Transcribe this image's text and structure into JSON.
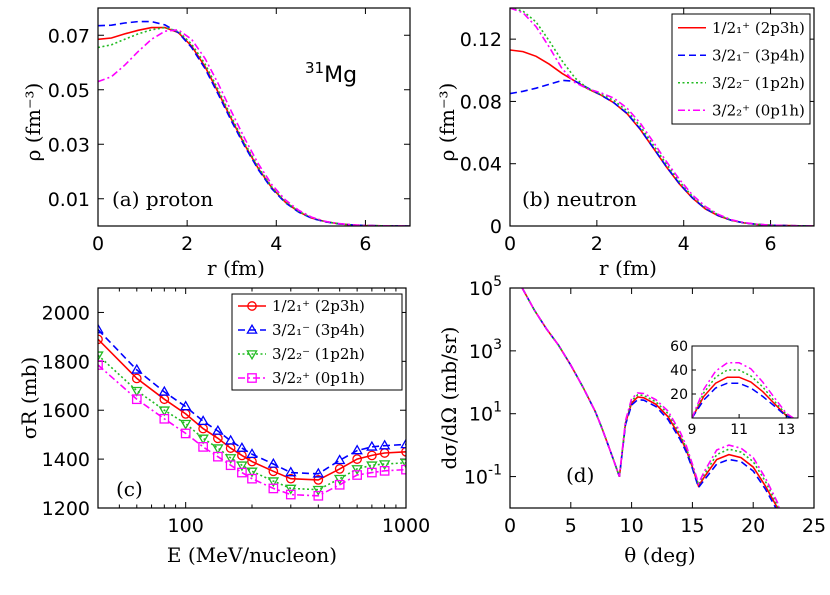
{
  "nucleus": {
    "mass": "31",
    "symbol": "Mg"
  },
  "styles": {
    "s0": {
      "color": "#ff0000",
      "dash": "",
      "marker": "circle"
    },
    "s1": {
      "color": "#0000ff",
      "dash": "7,4",
      "marker": "triangle"
    },
    "s2": {
      "color": "#22bb22",
      "dash": "2,2.5",
      "marker": "tri-down"
    },
    "s3": {
      "color": "#ff00ff",
      "dash": "7,3,2,3",
      "marker": "square"
    }
  },
  "chart_data": [
    {
      "id": "a",
      "type": "line",
      "panel_label": "(a) proton",
      "xlabel": "r (fm)",
      "ylabel": "ρ (fm⁻³)",
      "xlim": [
        0,
        7
      ],
      "ylim": [
        0,
        0.08
      ],
      "xticks": [
        0,
        2,
        4,
        6
      ],
      "yticks": [
        0.01,
        0.03,
        0.05,
        0.07
      ],
      "ytick_labels": [
        "0.01",
        "0.03",
        "0.05",
        "0.07"
      ],
      "x": [
        0,
        0.3,
        0.6,
        0.9,
        1.2,
        1.5,
        1.8,
        2.1,
        2.4,
        2.7,
        3.0,
        3.3,
        3.6,
        3.9,
        4.2,
        4.5,
        4.8,
        5.1,
        5.4,
        5.7,
        6.0,
        6.5,
        7.0
      ],
      "series": [
        {
          "style": "s0",
          "values": [
            0.0685,
            0.069,
            0.0705,
            0.0718,
            0.0728,
            0.0728,
            0.071,
            0.066,
            0.0585,
            0.049,
            0.039,
            0.0295,
            0.021,
            0.014,
            0.0088,
            0.0052,
            0.0029,
            0.0016,
            0.0008,
            0.0004,
            0.0002,
            5e-05,
            0.0
          ]
        },
        {
          "style": "s1",
          "values": [
            0.0735,
            0.0737,
            0.0745,
            0.075,
            0.075,
            0.0738,
            0.071,
            0.0655,
            0.0578,
            0.0483,
            0.0383,
            0.029,
            0.0206,
            0.0137,
            0.0086,
            0.0051,
            0.0028,
            0.0015,
            0.0008,
            0.0004,
            0.0002,
            5e-05,
            0.0
          ]
        },
        {
          "style": "s2",
          "values": [
            0.0655,
            0.0665,
            0.0685,
            0.0705,
            0.072,
            0.0728,
            0.0715,
            0.0668,
            0.0595,
            0.05,
            0.0398,
            0.0301,
            0.0215,
            0.0143,
            0.009,
            0.0054,
            0.003,
            0.0016,
            0.0008,
            0.0004,
            0.0002,
            5e-05,
            0.0
          ]
        },
        {
          "style": "s3",
          "values": [
            0.053,
            0.0548,
            0.059,
            0.064,
            0.0685,
            0.0715,
            0.072,
            0.0685,
            0.0615,
            0.0522,
            0.0418,
            0.0318,
            0.0227,
            0.0152,
            0.0096,
            0.0058,
            0.0032,
            0.0017,
            0.0009,
            0.0004,
            0.0002,
            5e-05,
            0.0
          ]
        }
      ]
    },
    {
      "id": "b",
      "type": "line",
      "panel_label": "(b) neutron",
      "xlabel": "r (fm)",
      "ylabel": "ρ (fm⁻³)",
      "xlim": [
        0,
        7
      ],
      "ylim": [
        0,
        0.14
      ],
      "xticks": [
        0,
        2,
        4,
        6
      ],
      "yticks": [
        0,
        0.04,
        0.08,
        0.12
      ],
      "ytick_labels": [
        "0",
        "0.04",
        "0.08",
        "0.12"
      ],
      "legend_position": "top-right",
      "x": [
        0,
        0.3,
        0.6,
        0.9,
        1.2,
        1.5,
        1.8,
        2.1,
        2.4,
        2.7,
        3.0,
        3.3,
        3.6,
        3.9,
        4.2,
        4.5,
        4.8,
        5.1,
        5.4,
        5.7,
        6.0,
        6.5,
        7.0
      ],
      "series": [
        {
          "style": "s0",
          "name": "1/2₁⁺  (2p3h)",
          "values": [
            0.113,
            0.112,
            0.109,
            0.104,
            0.098,
            0.093,
            0.088,
            0.084,
            0.079,
            0.072,
            0.062,
            0.05,
            0.038,
            0.027,
            0.018,
            0.011,
            0.0065,
            0.0036,
            0.0019,
            0.001,
            0.0005,
            0.0002,
            0.0
          ]
        },
        {
          "style": "s1",
          "name": "3/2₁⁻  (3p4h)",
          "values": [
            0.085,
            0.0865,
            0.0885,
            0.091,
            0.0935,
            0.093,
            0.0885,
            0.084,
            0.079,
            0.0722,
            0.0622,
            0.0502,
            0.0382,
            0.0272,
            0.0181,
            0.0111,
            0.0066,
            0.0036,
            0.0019,
            0.001,
            0.0005,
            0.0002,
            0.0
          ]
        },
        {
          "style": "s2",
          "name": "3/2₂⁻  (1p2h)",
          "values": [
            0.14,
            0.138,
            0.131,
            0.119,
            0.106,
            0.095,
            0.088,
            0.0845,
            0.0805,
            0.0738,
            0.064,
            0.052,
            0.0398,
            0.0285,
            0.019,
            0.0118,
            0.007,
            0.0038,
            0.002,
            0.001,
            0.0005,
            0.0002,
            0.0
          ]
        },
        {
          "style": "s3",
          "name": "3/2₂⁺  (0p1h)",
          "values": [
            0.14,
            0.137,
            0.128,
            0.115,
            0.101,
            0.092,
            0.088,
            0.0855,
            0.082,
            0.0755,
            0.066,
            0.054,
            0.0415,
            0.03,
            0.02,
            0.0125,
            0.0074,
            0.004,
            0.0021,
            0.0011,
            0.0006,
            0.0002,
            0.0
          ]
        }
      ]
    },
    {
      "id": "c",
      "type": "line",
      "panel_label": "(c)",
      "xlabel": "E (MeV/nucleon)",
      "ylabel": "σR (mb)",
      "xscale": "log",
      "xlim": [
        40,
        1000
      ],
      "ylim": [
        1200,
        2100
      ],
      "xticks": [
        100,
        1000
      ],
      "xtick_labels": [
        "100",
        "1000"
      ],
      "yticks": [
        1200,
        1400,
        1600,
        1800,
        2000
      ],
      "ytick_labels": [
        "1200",
        "1400",
        "1600",
        "1800",
        "2000"
      ],
      "legend_position": "top-right",
      "x": [
        40,
        60,
        80,
        100,
        120,
        140,
        160,
        180,
        200,
        250,
        300,
        400,
        500,
        600,
        700,
        800,
        1000
      ],
      "series": [
        {
          "style": "s0",
          "name": "1/2₁⁺  (2p3h)",
          "values": [
            1890,
            1730,
            1645,
            1585,
            1525,
            1485,
            1445,
            1415,
            1390,
            1350,
            1320,
            1315,
            1360,
            1400,
            1415,
            1425,
            1430
          ]
        },
        {
          "style": "s1",
          "name": "3/2₁⁻  (3p4h)",
          "values": [
            1930,
            1765,
            1675,
            1615,
            1555,
            1515,
            1475,
            1445,
            1420,
            1380,
            1345,
            1340,
            1395,
            1435,
            1450,
            1455,
            1460
          ]
        },
        {
          "style": "s2",
          "name": "3/2₂⁻  (1p2h)",
          "values": [
            1825,
            1680,
            1600,
            1545,
            1485,
            1445,
            1405,
            1375,
            1350,
            1310,
            1280,
            1275,
            1320,
            1360,
            1375,
            1380,
            1385
          ]
        },
        {
          "style": "s3",
          "name": "3/2₂⁺  (0p1h)",
          "values": [
            1785,
            1645,
            1565,
            1505,
            1450,
            1410,
            1375,
            1345,
            1320,
            1280,
            1255,
            1250,
            1295,
            1335,
            1345,
            1352,
            1357
          ]
        }
      ]
    },
    {
      "id": "d",
      "type": "line",
      "panel_label": "(d)",
      "xlabel": "θ (deg)",
      "ylabel": "dσ/dΩ (mb/sr)",
      "yscale": "log",
      "xlim": [
        0,
        25
      ],
      "ylim": [
        0.01,
        100000
      ],
      "xticks": [
        0,
        5,
        10,
        15,
        20,
        25
      ],
      "yticks": [
        0.1,
        10,
        1000,
        100000
      ],
      "x": [
        1,
        2,
        3,
        4,
        5,
        6,
        7,
        7.5,
        8,
        8.5,
        9,
        9.5,
        10,
        10.5,
        11,
        12,
        13,
        14,
        14.5,
        15,
        15.5,
        16,
        17,
        18,
        19,
        20,
        21,
        22,
        22.5
      ],
      "series": [
        {
          "style": "s0",
          "values": [
            100000,
            20000,
            5000,
            1500,
            350,
            70,
            12,
            4,
            1.2,
            0.35,
            0.1,
            5,
            22,
            34,
            32,
            20,
            8,
            1.8,
            0.7,
            0.2,
            0.05,
            0.1,
            0.35,
            0.5,
            0.4,
            0.2,
            0.05,
            0.01,
            0.002
          ]
        },
        {
          "style": "s1",
          "values": [
            100000,
            20000,
            5000,
            1500,
            350,
            70,
            12,
            4,
            1.2,
            0.35,
            0.1,
            4.5,
            19,
            28,
            27,
            17,
            6.5,
            1.5,
            0.6,
            0.18,
            0.045,
            0.08,
            0.25,
            0.35,
            0.3,
            0.15,
            0.04,
            0.008,
            0.0015
          ]
        },
        {
          "style": "s2",
          "values": [
            100000,
            20000,
            5000,
            1500,
            350,
            70,
            12,
            4,
            1.2,
            0.35,
            0.1,
            5.5,
            26,
            40,
            38,
            24,
            10,
            2.2,
            0.8,
            0.22,
            0.055,
            0.12,
            0.5,
            0.75,
            0.6,
            0.3,
            0.07,
            0.012,
            0.0025
          ]
        },
        {
          "style": "s3",
          "values": [
            100000,
            20000,
            5000,
            1500,
            350,
            70,
            12,
            4,
            1.2,
            0.35,
            0.1,
            6,
            30,
            46,
            44,
            28,
            12,
            2.6,
            0.95,
            0.25,
            0.06,
            0.15,
            0.7,
            1.0,
            0.8,
            0.4,
            0.09,
            0.015,
            0.003
          ]
        }
      ],
      "inset": {
        "type": "line",
        "xlim": [
          9,
          13.5
        ],
        "ylim": [
          0,
          60
        ],
        "xticks": [
          9,
          11,
          13
        ],
        "yticks": [
          20,
          40,
          60
        ],
        "x": [
          9.0,
          9.5,
          10.0,
          10.5,
          11.0,
          11.5,
          12.0,
          12.5,
          13.0,
          13.3
        ],
        "series": [
          {
            "style": "s0",
            "values": [
              0,
              18,
              29,
              34,
              34,
              30,
              22,
              12,
              2,
              0
            ]
          },
          {
            "style": "s1",
            "values": [
              0,
              15,
              25,
              29,
              29,
              25,
              18,
              10,
              1.5,
              0
            ]
          },
          {
            "style": "s2",
            "values": [
              0,
              21,
              34,
              40,
              40,
              35,
              26,
              14,
              3,
              0
            ]
          },
          {
            "style": "s3",
            "values": [
              0,
              24,
              39,
              46,
              46,
              41,
              30,
              17,
              4,
              0
            ]
          }
        ]
      }
    }
  ]
}
